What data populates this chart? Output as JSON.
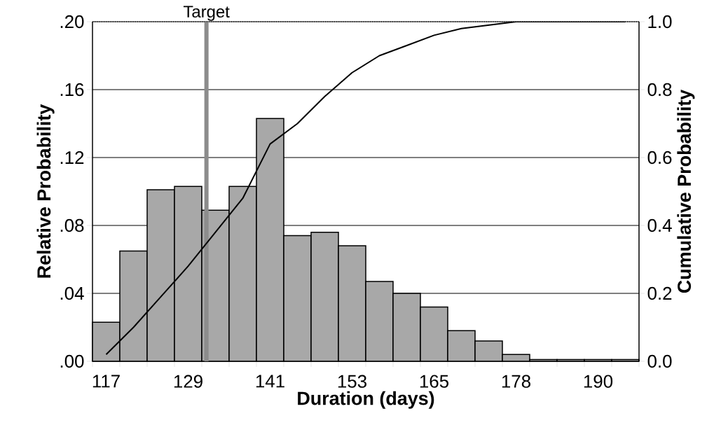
{
  "chart_data": {
    "type": "bar",
    "xlabel": "Duration (days)",
    "ylabel": "Relative Probability",
    "y2label": "Cumulative Probability",
    "categories": [
      "117",
      null,
      null,
      "129",
      null,
      null,
      "141",
      null,
      null,
      "153",
      null,
      null,
      "165",
      null,
      null,
      "178",
      null,
      null,
      "190",
      null
    ],
    "series": [
      {
        "color": "#a8a8a8",
        "values": [
          0.023,
          0.065,
          0.101,
          0.103,
          0.089,
          0.103,
          0.143,
          0.074,
          0.076,
          0.068,
          0.047,
          0.04,
          0.032,
          0.018,
          0.012,
          0.004,
          0.001,
          0.001,
          0.001,
          0.001
        ]
      },
      {
        "type": "line",
        "axis": "y2",
        "color": "#000000",
        "values": [
          0.02,
          0.1,
          0.19,
          0.28,
          0.38,
          0.48,
          0.64,
          0.7,
          0.78,
          0.85,
          0.9,
          0.93,
          0.96,
          0.98,
          0.99,
          1.0,
          1.0,
          1.0,
          1.0,
          1.0
        ]
      }
    ],
    "ylim": [
      0,
      0.2
    ],
    "yticks": [
      {
        "value": 0,
        "label": ".00"
      },
      {
        "value": 0.04,
        "label": ".04"
      },
      {
        "value": 0.08,
        "label": ".08"
      },
      {
        "value": 0.12,
        "label": ".12"
      },
      {
        "value": 0.16,
        "label": ".16"
      },
      {
        "value": 0.2,
        "label": ".20"
      }
    ],
    "y2lim": [
      0,
      1
    ],
    "y2ticks": [
      {
        "value": 0,
        "label": "0.0"
      },
      {
        "value": 0.2,
        "label": "0.2"
      },
      {
        "value": 0.4,
        "label": "0.4"
      },
      {
        "value": 0.6,
        "label": "0.6"
      },
      {
        "value": 0.8,
        "label": "0.8"
      },
      {
        "value": 1,
        "label": "1.0"
      }
    ],
    "annotations": [
      "Target"
    ],
    "grid": "y",
    "marker": "none"
  }
}
